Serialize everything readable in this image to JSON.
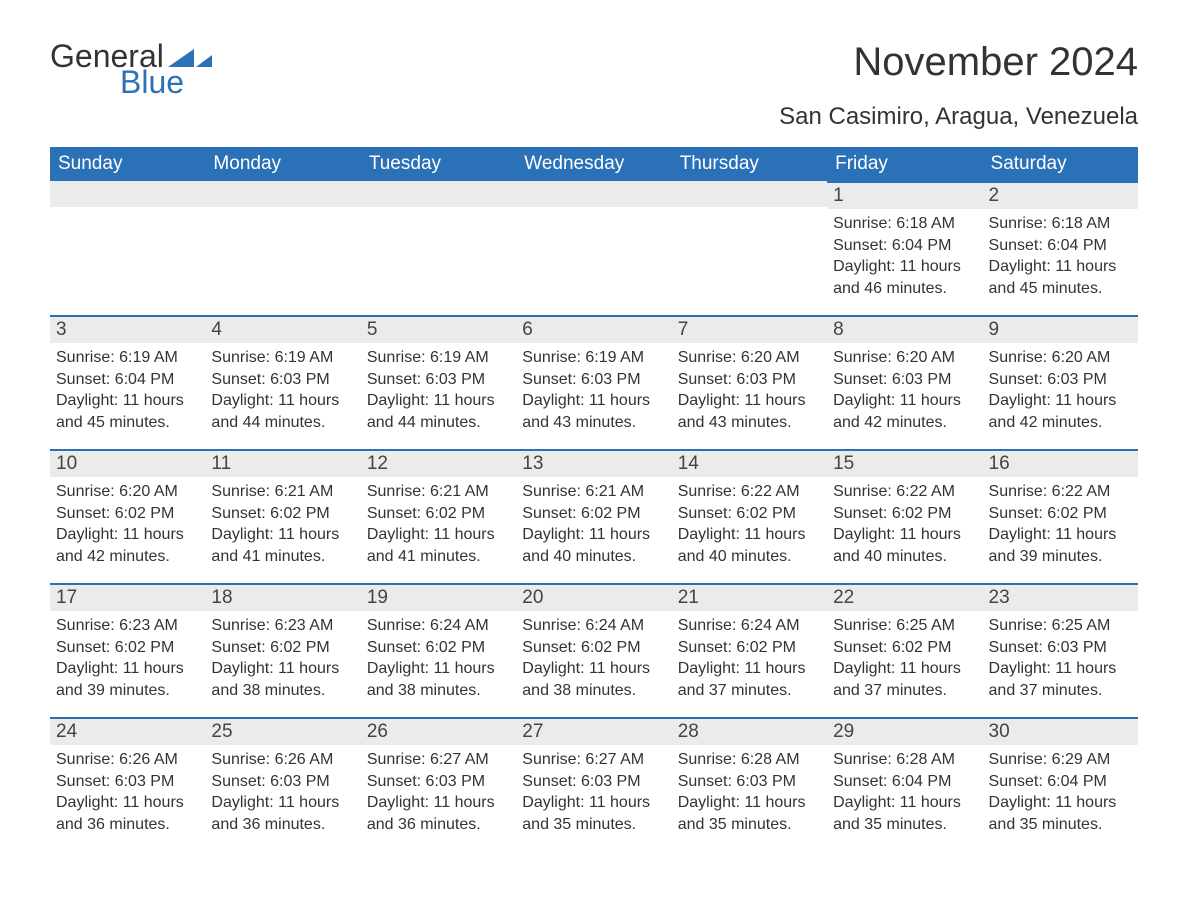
{
  "logo": {
    "text1": "General",
    "text2": "Blue",
    "color1": "#333333",
    "color2": "#2a71b8"
  },
  "title": "November 2024",
  "location": "San Casimiro, Aragua, Venezuela",
  "colors": {
    "header_bg": "#2a71b8",
    "header_text": "#ffffff",
    "daynum_bg": "#ebebeb",
    "row_border": "#2a71b8",
    "body_text": "#333333",
    "page_bg": "#ffffff"
  },
  "fonts": {
    "title_size": 40,
    "location_size": 24,
    "weekday_size": 19,
    "daynum_size": 19,
    "body_size": 16
  },
  "weekdays": [
    "Sunday",
    "Monday",
    "Tuesday",
    "Wednesday",
    "Thursday",
    "Friday",
    "Saturday"
  ],
  "weeks": [
    [
      {
        "day": "",
        "sunrise": "",
        "sunset": "",
        "daylight": ""
      },
      {
        "day": "",
        "sunrise": "",
        "sunset": "",
        "daylight": ""
      },
      {
        "day": "",
        "sunrise": "",
        "sunset": "",
        "daylight": ""
      },
      {
        "day": "",
        "sunrise": "",
        "sunset": "",
        "daylight": ""
      },
      {
        "day": "",
        "sunrise": "",
        "sunset": "",
        "daylight": ""
      },
      {
        "day": "1",
        "sunrise": "Sunrise: 6:18 AM",
        "sunset": "Sunset: 6:04 PM",
        "daylight": "Daylight: 11 hours and 46 minutes."
      },
      {
        "day": "2",
        "sunrise": "Sunrise: 6:18 AM",
        "sunset": "Sunset: 6:04 PM",
        "daylight": "Daylight: 11 hours and 45 minutes."
      }
    ],
    [
      {
        "day": "3",
        "sunrise": "Sunrise: 6:19 AM",
        "sunset": "Sunset: 6:04 PM",
        "daylight": "Daylight: 11 hours and 45 minutes."
      },
      {
        "day": "4",
        "sunrise": "Sunrise: 6:19 AM",
        "sunset": "Sunset: 6:03 PM",
        "daylight": "Daylight: 11 hours and 44 minutes."
      },
      {
        "day": "5",
        "sunrise": "Sunrise: 6:19 AM",
        "sunset": "Sunset: 6:03 PM",
        "daylight": "Daylight: 11 hours and 44 minutes."
      },
      {
        "day": "6",
        "sunrise": "Sunrise: 6:19 AM",
        "sunset": "Sunset: 6:03 PM",
        "daylight": "Daylight: 11 hours and 43 minutes."
      },
      {
        "day": "7",
        "sunrise": "Sunrise: 6:20 AM",
        "sunset": "Sunset: 6:03 PM",
        "daylight": "Daylight: 11 hours and 43 minutes."
      },
      {
        "day": "8",
        "sunrise": "Sunrise: 6:20 AM",
        "sunset": "Sunset: 6:03 PM",
        "daylight": "Daylight: 11 hours and 42 minutes."
      },
      {
        "day": "9",
        "sunrise": "Sunrise: 6:20 AM",
        "sunset": "Sunset: 6:03 PM",
        "daylight": "Daylight: 11 hours and 42 minutes."
      }
    ],
    [
      {
        "day": "10",
        "sunrise": "Sunrise: 6:20 AM",
        "sunset": "Sunset: 6:02 PM",
        "daylight": "Daylight: 11 hours and 42 minutes."
      },
      {
        "day": "11",
        "sunrise": "Sunrise: 6:21 AM",
        "sunset": "Sunset: 6:02 PM",
        "daylight": "Daylight: 11 hours and 41 minutes."
      },
      {
        "day": "12",
        "sunrise": "Sunrise: 6:21 AM",
        "sunset": "Sunset: 6:02 PM",
        "daylight": "Daylight: 11 hours and 41 minutes."
      },
      {
        "day": "13",
        "sunrise": "Sunrise: 6:21 AM",
        "sunset": "Sunset: 6:02 PM",
        "daylight": "Daylight: 11 hours and 40 minutes."
      },
      {
        "day": "14",
        "sunrise": "Sunrise: 6:22 AM",
        "sunset": "Sunset: 6:02 PM",
        "daylight": "Daylight: 11 hours and 40 minutes."
      },
      {
        "day": "15",
        "sunrise": "Sunrise: 6:22 AM",
        "sunset": "Sunset: 6:02 PM",
        "daylight": "Daylight: 11 hours and 40 minutes."
      },
      {
        "day": "16",
        "sunrise": "Sunrise: 6:22 AM",
        "sunset": "Sunset: 6:02 PM",
        "daylight": "Daylight: 11 hours and 39 minutes."
      }
    ],
    [
      {
        "day": "17",
        "sunrise": "Sunrise: 6:23 AM",
        "sunset": "Sunset: 6:02 PM",
        "daylight": "Daylight: 11 hours and 39 minutes."
      },
      {
        "day": "18",
        "sunrise": "Sunrise: 6:23 AM",
        "sunset": "Sunset: 6:02 PM",
        "daylight": "Daylight: 11 hours and 38 minutes."
      },
      {
        "day": "19",
        "sunrise": "Sunrise: 6:24 AM",
        "sunset": "Sunset: 6:02 PM",
        "daylight": "Daylight: 11 hours and 38 minutes."
      },
      {
        "day": "20",
        "sunrise": "Sunrise: 6:24 AM",
        "sunset": "Sunset: 6:02 PM",
        "daylight": "Daylight: 11 hours and 38 minutes."
      },
      {
        "day": "21",
        "sunrise": "Sunrise: 6:24 AM",
        "sunset": "Sunset: 6:02 PM",
        "daylight": "Daylight: 11 hours and 37 minutes."
      },
      {
        "day": "22",
        "sunrise": "Sunrise: 6:25 AM",
        "sunset": "Sunset: 6:02 PM",
        "daylight": "Daylight: 11 hours and 37 minutes."
      },
      {
        "day": "23",
        "sunrise": "Sunrise: 6:25 AM",
        "sunset": "Sunset: 6:03 PM",
        "daylight": "Daylight: 11 hours and 37 minutes."
      }
    ],
    [
      {
        "day": "24",
        "sunrise": "Sunrise: 6:26 AM",
        "sunset": "Sunset: 6:03 PM",
        "daylight": "Daylight: 11 hours and 36 minutes."
      },
      {
        "day": "25",
        "sunrise": "Sunrise: 6:26 AM",
        "sunset": "Sunset: 6:03 PM",
        "daylight": "Daylight: 11 hours and 36 minutes."
      },
      {
        "day": "26",
        "sunrise": "Sunrise: 6:27 AM",
        "sunset": "Sunset: 6:03 PM",
        "daylight": "Daylight: 11 hours and 36 minutes."
      },
      {
        "day": "27",
        "sunrise": "Sunrise: 6:27 AM",
        "sunset": "Sunset: 6:03 PM",
        "daylight": "Daylight: 11 hours and 35 minutes."
      },
      {
        "day": "28",
        "sunrise": "Sunrise: 6:28 AM",
        "sunset": "Sunset: 6:03 PM",
        "daylight": "Daylight: 11 hours and 35 minutes."
      },
      {
        "day": "29",
        "sunrise": "Sunrise: 6:28 AM",
        "sunset": "Sunset: 6:04 PM",
        "daylight": "Daylight: 11 hours and 35 minutes."
      },
      {
        "day": "30",
        "sunrise": "Sunrise: 6:29 AM",
        "sunset": "Sunset: 6:04 PM",
        "daylight": "Daylight: 11 hours and 35 minutes."
      }
    ]
  ]
}
